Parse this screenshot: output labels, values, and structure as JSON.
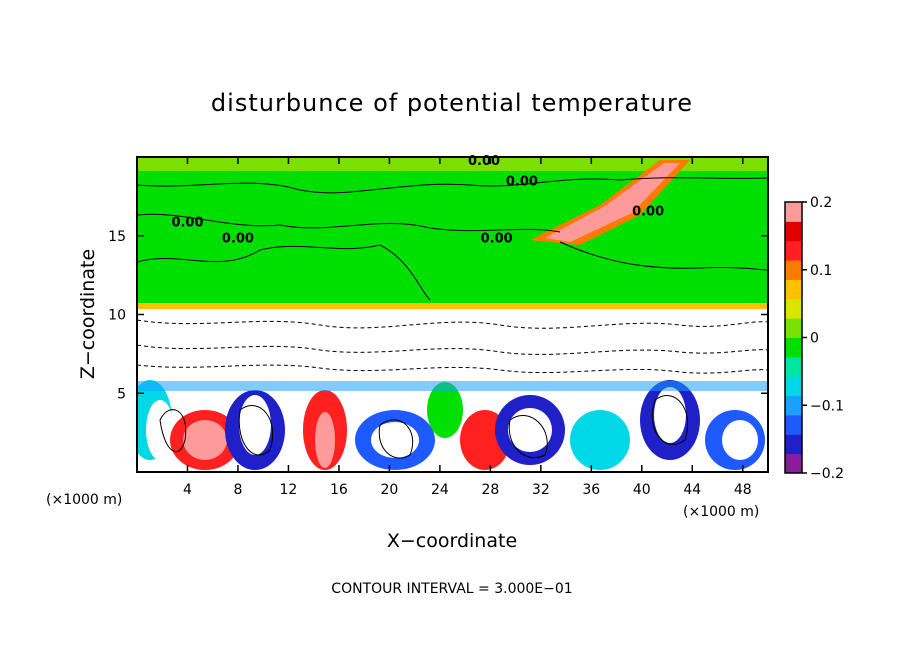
{
  "chart_data": {
    "type": "heatmap",
    "title": "disturbunce of potential temperature",
    "xlabel": "X−coordinate",
    "ylabel": "Z−coordinate",
    "x_unit_label": "(×1000 m)",
    "z_unit_label": "(×1000 m)",
    "xlim": [
      0,
      50
    ],
    "ylim": [
      0,
      20
    ],
    "x_ticks": [
      4,
      8,
      12,
      16,
      20,
      24,
      28,
      32,
      36,
      40,
      44,
      48
    ],
    "y_ticks": [
      5,
      10,
      15
    ],
    "colorbar": {
      "range": [
        -0.2,
        0.2
      ],
      "ticks": [
        0.2,
        0.1,
        0,
        -0.1,
        -0.2
      ],
      "tick_labels": [
        "0.2",
        "0.1",
        "0",
        "−0.1",
        "−0.2"
      ],
      "colors": [
        "#8b1c9c",
        "#2020c8",
        "#1e5aff",
        "#1aa0ff",
        "#00d8e8",
        "#00e6a0",
        "#00e000",
        "#7ae000",
        "#d8e600",
        "#ffc000",
        "#ff7a00",
        "#ff2020",
        "#e00000",
        "#ff9a9a"
      ]
    },
    "contour_interval_text": "CONTOUR INTERVAL = 3.000E−01",
    "contour_labels": [
      {
        "text": "0.00",
        "x": 27.5,
        "z": 19.8
      },
      {
        "text": "0.00",
        "x": 30.5,
        "z": 18.5
      },
      {
        "text": "0.00",
        "x": 4.0,
        "z": 15.9
      },
      {
        "text": "0.00",
        "x": 8.0,
        "z": 14.9
      },
      {
        "text": "0.00",
        "x": 28.5,
        "z": 14.9
      },
      {
        "text": "0.00",
        "x": 40.5,
        "z": 16.6
      }
    ]
  }
}
